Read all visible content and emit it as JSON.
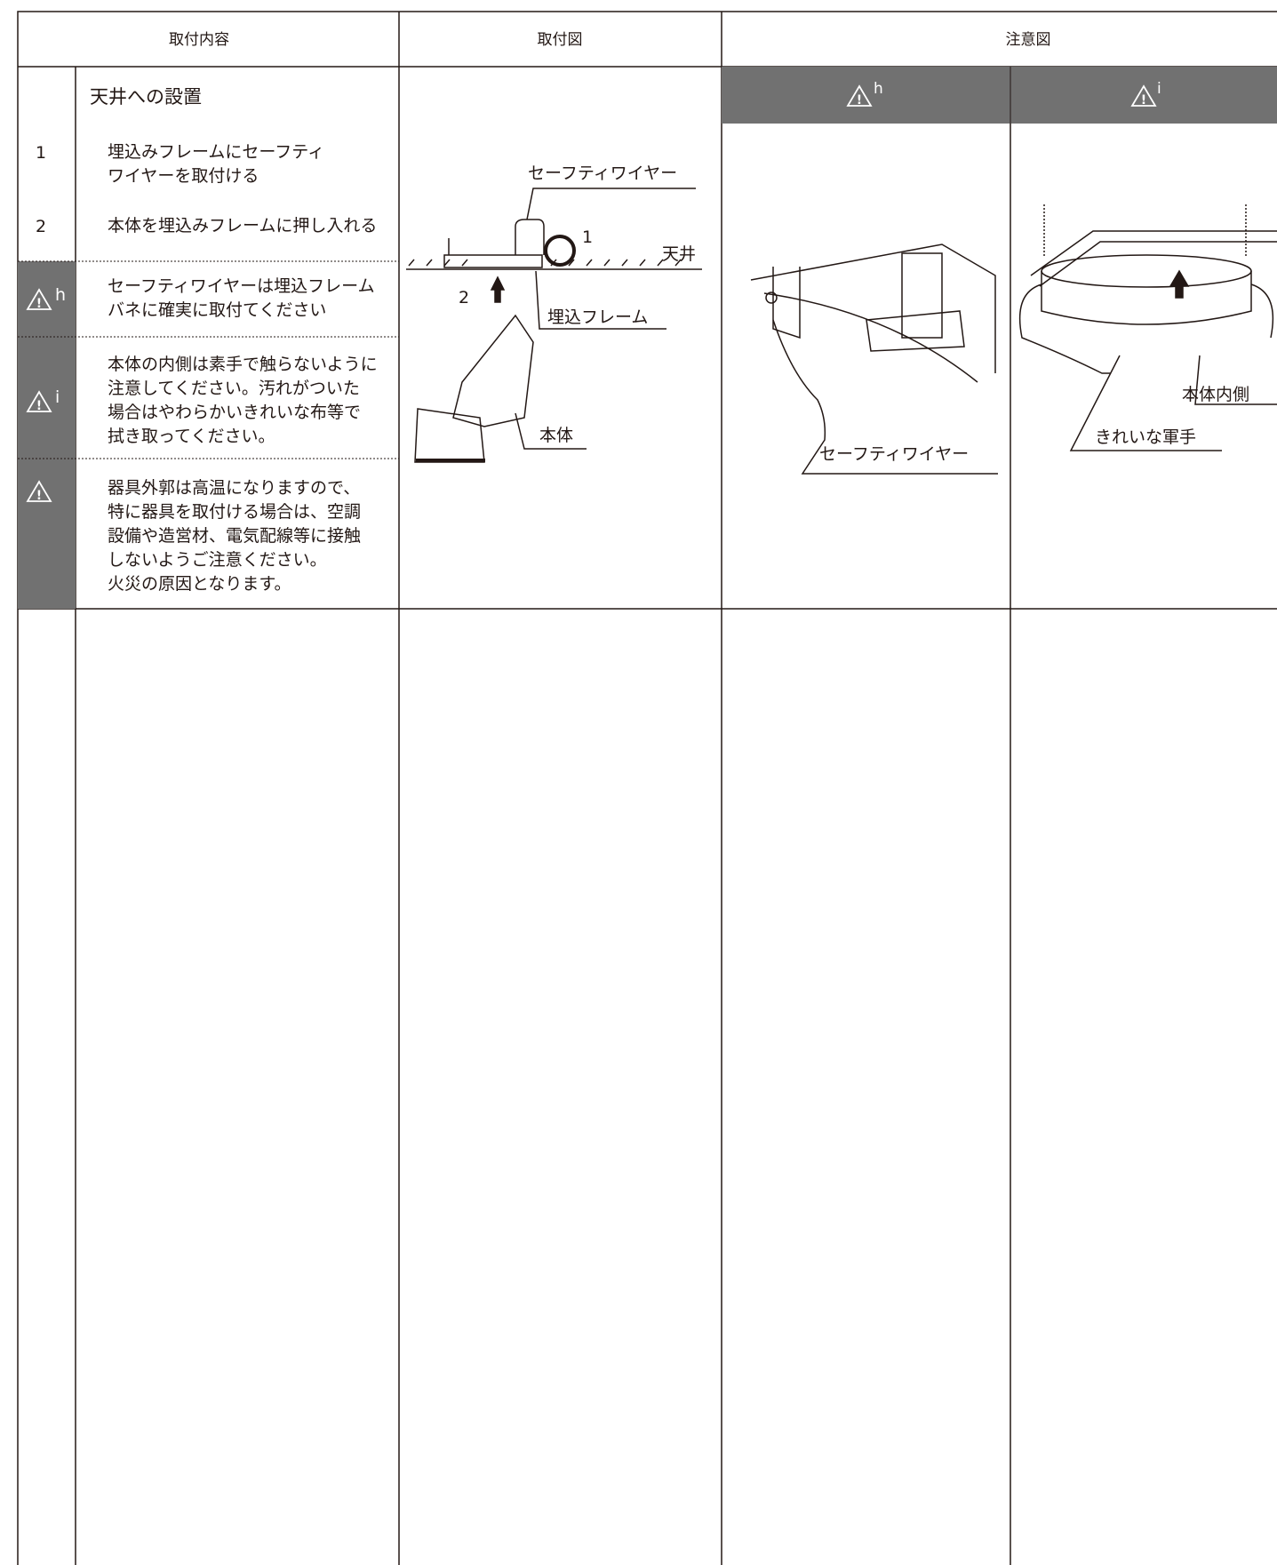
{
  "header": {
    "columns": [
      "取付内容",
      "取付図",
      "注意図"
    ]
  },
  "section": {
    "title": "天井への設置",
    "steps": [
      {
        "number": "1",
        "text": [
          "埋込みフレームにセーフティ",
          "ワイヤーを取付ける"
        ]
      },
      {
        "number": "2",
        "text": [
          "本体を埋込みフレームに押し入れる"
        ]
      }
    ],
    "cautions": [
      {
        "mark": "h",
        "text": [
          "セーフティワイヤーは埋込フレーム",
          "バネに確実に取付てください"
        ]
      },
      {
        "mark": "i",
        "text": [
          "本体の内側は素手で触らないように",
          "注意してください。汚れがついた",
          "場合はやわらかいきれいな布等で",
          "拭き取ってください。"
        ]
      },
      {
        "text": [
          "器具外郭は高温になりますので、",
          "特に器具を取付ける場合は、空調",
          "設備や造営材、電気配線等に接触",
          "しないようご注意ください。",
          "火災の原因となります。"
        ]
      }
    ]
  },
  "figure": {
    "labels": [
      "セーフティワイヤー",
      "天井",
      "埋込フレーム",
      "本体"
    ],
    "step_numbers": [
      "1",
      "2"
    ]
  },
  "caution_figures": [
    {
      "mark": "h",
      "labels": [
        "セーフティワイヤー"
      ]
    },
    {
      "mark": "i",
      "labels": [
        "本体内側",
        "きれいな軍手"
      ]
    }
  ]
}
